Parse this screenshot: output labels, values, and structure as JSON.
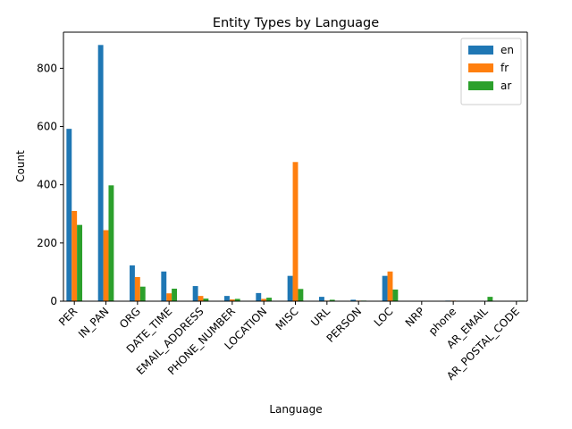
{
  "chart_data": {
    "type": "bar",
    "title": "Entity Types by Language",
    "xlabel": "Language",
    "ylabel": "Count",
    "ylim": [
      0,
      924
    ],
    "yticks": [
      0,
      200,
      400,
      600,
      800
    ],
    "legend_position": "top-right",
    "categories": [
      "PER",
      "IN_PAN",
      "ORG",
      "DATE_TIME",
      "EMAIL_ADDRESS",
      "PHONE_NUMBER",
      "LOCATION",
      "MISC",
      "URL",
      "PERSON",
      "LOC",
      "NRP",
      "phone",
      "AR_EMAIL",
      "AR_POSTAL_CODE"
    ],
    "series": [
      {
        "name": "en",
        "color": "#1f77b4",
        "values": [
          592,
          880,
          123,
          102,
          52,
          18,
          28,
          87,
          15,
          5,
          87,
          1,
          2,
          0,
          0
        ]
      },
      {
        "name": "fr",
        "color": "#ff7f0e",
        "values": [
          310,
          244,
          83,
          27,
          18,
          6,
          8,
          478,
          2,
          2,
          102,
          1,
          2,
          0,
          0
        ]
      },
      {
        "name": "ar",
        "color": "#2ca02c",
        "values": [
          262,
          398,
          50,
          43,
          9,
          8,
          12,
          42,
          5,
          2,
          40,
          1,
          0,
          15,
          2
        ]
      }
    ]
  }
}
